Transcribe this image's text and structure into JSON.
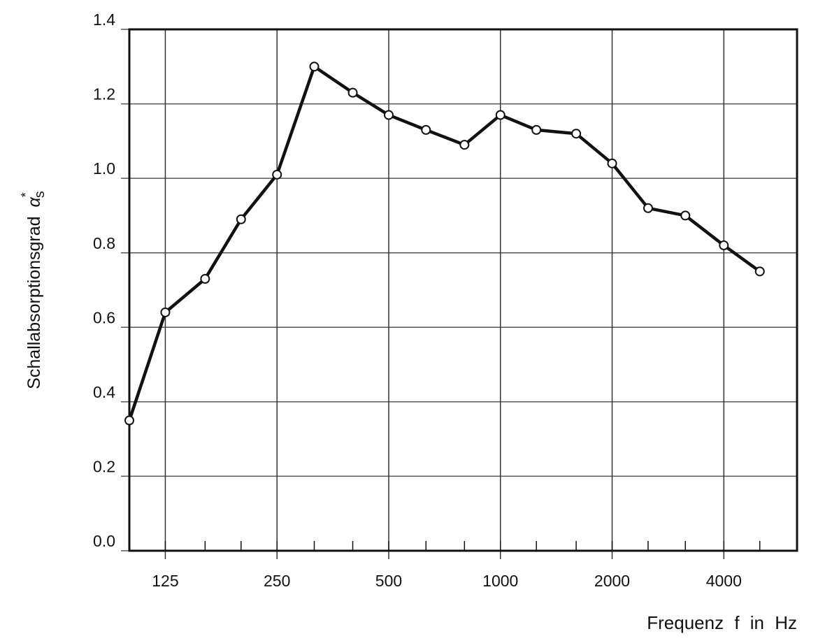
{
  "chart_data": {
    "type": "line",
    "x_label": "Frequenz f in Hz",
    "y_label": "Schallabsorptionsgrad",
    "y_symbol": "α",
    "y_symbol_sup": "*",
    "y_symbol_sub": "s",
    "x": [
      100,
      125,
      160,
      200,
      250,
      315,
      400,
      500,
      630,
      800,
      1000,
      1250,
      1600,
      2000,
      2500,
      3150,
      4000,
      5000
    ],
    "values": [
      0.35,
      0.64,
      0.73,
      0.89,
      1.01,
      1.3,
      1.23,
      1.17,
      1.13,
      1.09,
      1.17,
      1.13,
      1.12,
      1.04,
      0.92,
      0.9,
      0.82,
      0.75
    ],
    "color": "#111111",
    "xlim": [
      100,
      6300
    ],
    "xscale": "log",
    "xticks": [
      125,
      250,
      500,
      1000,
      2000,
      4000
    ],
    "ylim": [
      0,
      1.4
    ],
    "yticks": [
      {
        "value": 0,
        "label": "0.0"
      },
      0.2,
      0.4,
      0.6,
      0.8,
      {
        "value": 1,
        "label": "1.0"
      },
      1.2,
      1.4
    ],
    "grid": true
  }
}
